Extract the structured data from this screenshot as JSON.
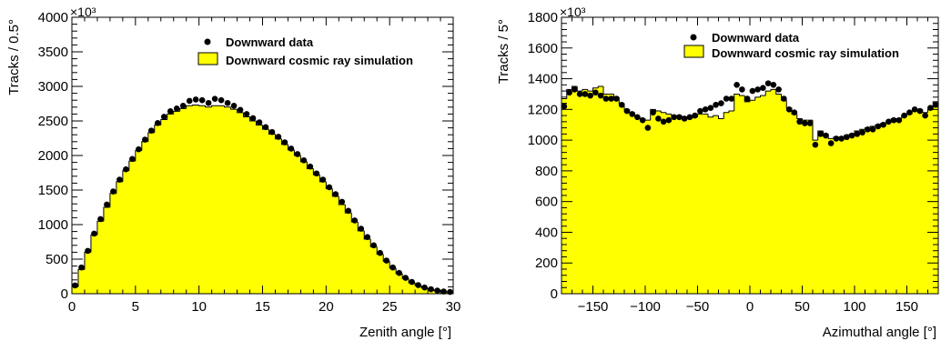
{
  "chart_data": [
    {
      "type": "histogram",
      "xlabel": "Zenith angle [°]",
      "ylabel": "Tracks / 0.5°",
      "multiplier": "×10³",
      "xlim": [
        0,
        30
      ],
      "ylim": [
        0,
        4000
      ],
      "x_ticks": [
        0,
        5,
        10,
        15,
        20,
        25,
        30
      ],
      "y_ticks": [
        0,
        500,
        1000,
        1500,
        2000,
        2500,
        3000,
        3500,
        4000
      ],
      "bin_width": 0.5,
      "legend_position": "top-right",
      "series": [
        {
          "name": "Downward data",
          "style": "markers",
          "color": "#000000",
          "values": [
            120,
            380,
            620,
            870,
            1080,
            1290,
            1480,
            1650,
            1800,
            1950,
            2090,
            2230,
            2360,
            2470,
            2560,
            2640,
            2680,
            2720,
            2790,
            2810,
            2800,
            2760,
            2820,
            2800,
            2760,
            2720,
            2660,
            2600,
            2540,
            2480,
            2410,
            2340,
            2270,
            2190,
            2100,
            2020,
            1930,
            1840,
            1740,
            1650,
            1540,
            1440,
            1330,
            1200,
            1060,
            940,
            820,
            700,
            590,
            480,
            380,
            300,
            230,
            170,
            125,
            90,
            65,
            45,
            32,
            25
          ]
        },
        {
          "name": "Downward cosmic ray simulation",
          "style": "filled-step",
          "color": "#ffff00",
          "values": [
            100,
            350,
            600,
            850,
            1050,
            1250,
            1450,
            1620,
            1780,
            1920,
            2070,
            2200,
            2330,
            2440,
            2520,
            2600,
            2640,
            2680,
            2720,
            2730,
            2720,
            2700,
            2720,
            2720,
            2700,
            2670,
            2620,
            2560,
            2500,
            2440,
            2380,
            2310,
            2240,
            2160,
            2080,
            2000,
            1910,
            1810,
            1720,
            1620,
            1520,
            1410,
            1290,
            1170,
            1040,
            910,
            790,
            680,
            570,
            470,
            370,
            290,
            220,
            160,
            120,
            85,
            60,
            42,
            30,
            22
          ]
        }
      ]
    },
    {
      "type": "histogram",
      "xlabel": "Azimuthal angle [°]",
      "ylabel": "Tracks / 5°",
      "multiplier": "×10³",
      "xlim": [
        -180,
        180
      ],
      "ylim": [
        0,
        1800
      ],
      "x_ticks": [
        -150,
        -100,
        -50,
        0,
        50,
        100,
        150
      ],
      "y_ticks": [
        0,
        200,
        400,
        600,
        800,
        1000,
        1200,
        1400,
        1600,
        1800
      ],
      "bin_width": 5,
      "legend_position": "top-right",
      "series": [
        {
          "name": "Downward data",
          "style": "markers",
          "color": "#000000",
          "values": [
            1220,
            1310,
            1330,
            1300,
            1300,
            1290,
            1310,
            1290,
            1270,
            1270,
            1270,
            1230,
            1190,
            1170,
            1150,
            1130,
            1080,
            1180,
            1140,
            1120,
            1130,
            1150,
            1150,
            1140,
            1150,
            1160,
            1190,
            1200,
            1210,
            1230,
            1240,
            1270,
            1270,
            1360,
            1330,
            1270,
            1320,
            1330,
            1340,
            1370,
            1360,
            1330,
            1270,
            1200,
            1180,
            1120,
            1110,
            1110,
            970,
            1040,
            1030,
            980,
            1010,
            1010,
            1020,
            1030,
            1040,
            1050,
            1070,
            1070,
            1090,
            1100,
            1120,
            1130,
            1130,
            1160,
            1180,
            1200,
            1190,
            1160,
            1210,
            1230
          ]
        },
        {
          "name": "Downward cosmic ray simulation",
          "style": "filled-step",
          "color": "#ffff00",
          "values": [
            1270,
            1330,
            1350,
            1320,
            1330,
            1320,
            1340,
            1350,
            1300,
            1300,
            1280,
            1240,
            1200,
            1180,
            1150,
            1140,
            1130,
            1200,
            1190,
            1180,
            1170,
            1160,
            1160,
            1150,
            1140,
            1150,
            1170,
            1170,
            1150,
            1160,
            1140,
            1180,
            1190,
            1300,
            1290,
            1250,
            1260,
            1280,
            1290,
            1320,
            1330,
            1300,
            1260,
            1210,
            1170,
            1140,
            1130,
            1130,
            1000,
            1060,
            1040,
            1010,
            1020,
            1020,
            1030,
            1040,
            1060,
            1070,
            1080,
            1090,
            1100,
            1110,
            1120,
            1140,
            1140,
            1160,
            1170,
            1190,
            1200,
            1180,
            1200,
            1250
          ]
        }
      ]
    }
  ]
}
